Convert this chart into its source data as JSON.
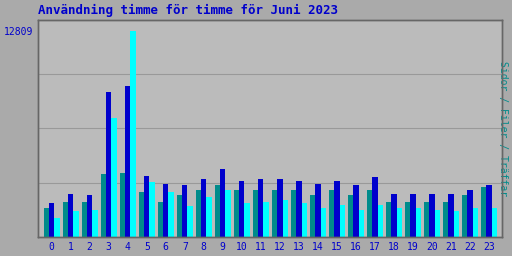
{
  "title": "Användning timme för timme för Juni 2023",
  "ytick_value": 12809,
  "ytick_label": "12809",
  "ylabel_right": "Sidor / Filer / Träffar",
  "hours": [
    0,
    1,
    2,
    3,
    4,
    5,
    6,
    7,
    8,
    9,
    10,
    11,
    12,
    13,
    14,
    15,
    16,
    17,
    18,
    19,
    20,
    21,
    22,
    23
  ],
  "series_green": [
    1800,
    2200,
    2200,
    3900,
    4000,
    2800,
    2200,
    2600,
    2900,
    3200,
    2900,
    2900,
    2900,
    2900,
    2600,
    2900,
    2600,
    2900,
    2200,
    2200,
    2200,
    2200,
    2600,
    3100
  ],
  "series_blue": [
    2100,
    2700,
    2600,
    9000,
    9400,
    3800,
    3300,
    3200,
    3600,
    4200,
    3500,
    3600,
    3600,
    3500,
    3300,
    3500,
    3200,
    3700,
    2700,
    2700,
    2700,
    2700,
    2900,
    3200
  ],
  "series_cyan": [
    1200,
    1600,
    1700,
    7400,
    12809,
    3400,
    2800,
    1900,
    2500,
    2900,
    2100,
    2200,
    2300,
    2100,
    1800,
    2000,
    1700,
    2000,
    1800,
    1800,
    1700,
    1600,
    1800,
    1800
  ],
  "color_green": "#008B8B",
  "color_blue": "#0000CC",
  "color_cyan": "#00FFFF",
  "bg_color": "#AAAAAA",
  "plot_bg": "#BBBBBB",
  "ymax": 13500,
  "bar_width": 0.28,
  "title_color": "#0000CC",
  "ylabel_right_color": "#008B8B",
  "tick_label_color": "#0000CC",
  "grid_color": "#999999",
  "grid_levels": [
    3375,
    6750,
    10125,
    13500
  ]
}
